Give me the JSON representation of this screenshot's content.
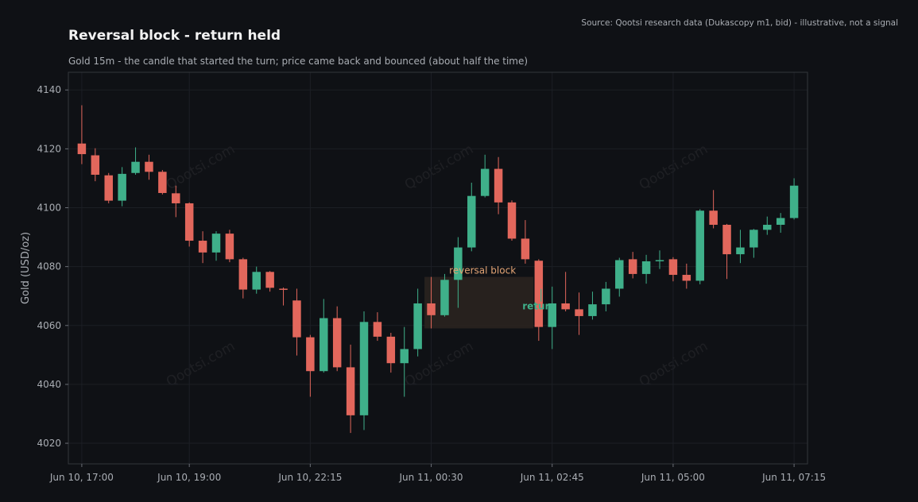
{
  "header": {
    "source": "Source: Qootsi research data (Dukascopy m1, bid) - illustrative, not a signal",
    "title": "Reversal block - return held",
    "subtitle": "Gold 15m - the candle that started the turn; price came back and bounced (about half the time)"
  },
  "watermark": "Qootsi.com",
  "colors": {
    "background": "#0f1115",
    "plot_border": "#33363c",
    "grid": "#1c1f25",
    "up": "#3fb08a",
    "down": "#e2675c",
    "zone_fill": "#2b2420",
    "zone_label": "#e2a374",
    "return_label": "#3fb08a"
  },
  "chart_data": {
    "type": "candlestick",
    "ylabel": "Gold (USD/oz)",
    "ylim": [
      4013,
      4146
    ],
    "yticks": [
      4020,
      4040,
      4060,
      4080,
      4100,
      4120,
      4140
    ],
    "xticks": [
      {
        "label": "Jun 10, 17:00",
        "index": 0
      },
      {
        "label": "Jun 10, 19:00",
        "index": 8
      },
      {
        "label": "Jun 10, 22:15",
        "index": 17
      },
      {
        "label": "Jun 11, 00:30",
        "index": 26
      },
      {
        "label": "Jun 11, 02:45",
        "index": 35
      },
      {
        "label": "Jun 11, 05:00",
        "index": 44
      },
      {
        "label": "Jun 11, 07:15",
        "index": 53
      }
    ],
    "x_range": [
      -1,
      54
    ],
    "grid": true,
    "zone": {
      "label": "reversal block",
      "start_index": 25.5,
      "end_index": 33.6,
      "low": 4059.0,
      "high": 4076.5
    },
    "return_marker": {
      "label": "return",
      "index": 34.2,
      "price": 4066.5
    },
    "candles": [
      {
        "o": 4121.8,
        "h": 4134.8,
        "l": 4114.8,
        "c": 4118.2
      },
      {
        "o": 4117.8,
        "h": 4120.2,
        "l": 4109.0,
        "c": 4111.2
      },
      {
        "o": 4111.0,
        "h": 4111.8,
        "l": 4101.5,
        "c": 4102.4
      },
      {
        "o": 4102.4,
        "h": 4113.8,
        "l": 4100.5,
        "c": 4111.5
      },
      {
        "o": 4111.8,
        "h": 4120.5,
        "l": 4111.2,
        "c": 4115.6
      },
      {
        "o": 4115.6,
        "h": 4118.0,
        "l": 4109.5,
        "c": 4112.2
      },
      {
        "o": 4112.2,
        "h": 4112.8,
        "l": 4104.5,
        "c": 4105.0
      },
      {
        "o": 4104.9,
        "h": 4107.5,
        "l": 4096.8,
        "c": 4101.5
      },
      {
        "o": 4101.5,
        "h": 4101.8,
        "l": 4086.8,
        "c": 4088.8
      },
      {
        "o": 4088.8,
        "h": 4092.0,
        "l": 4081.2,
        "c": 4084.8
      },
      {
        "o": 4084.8,
        "h": 4092.0,
        "l": 4082.0,
        "c": 4091.2
      },
      {
        "o": 4091.2,
        "h": 4092.5,
        "l": 4081.5,
        "c": 4082.5
      },
      {
        "o": 4082.5,
        "h": 4083.0,
        "l": 4069.2,
        "c": 4072.2
      },
      {
        "o": 4072.2,
        "h": 4080.0,
        "l": 4070.8,
        "c": 4078.2
      },
      {
        "o": 4078.2,
        "h": 4078.5,
        "l": 4071.5,
        "c": 4072.8
      },
      {
        "o": 4072.5,
        "h": 4072.9,
        "l": 4066.8,
        "c": 4072.1
      },
      {
        "o": 4068.5,
        "h": 4072.5,
        "l": 4049.8,
        "c": 4056.0
      },
      {
        "o": 4056.0,
        "h": 4056.8,
        "l": 4035.8,
        "c": 4044.5
      },
      {
        "o": 4044.5,
        "h": 4069.0,
        "l": 4044.0,
        "c": 4062.5
      },
      {
        "o": 4062.5,
        "h": 4066.5,
        "l": 4044.5,
        "c": 4045.8
      },
      {
        "o": 4045.8,
        "h": 4053.5,
        "l": 4023.5,
        "c": 4029.5
      },
      {
        "o": 4029.5,
        "h": 4064.8,
        "l": 4024.5,
        "c": 4061.2
      },
      {
        "o": 4061.2,
        "h": 4064.5,
        "l": 4054.8,
        "c": 4056.2
      },
      {
        "o": 4056.2,
        "h": 4057.5,
        "l": 4044.0,
        "c": 4047.2
      },
      {
        "o": 4047.2,
        "h": 4059.5,
        "l": 4035.8,
        "c": 4052.0
      },
      {
        "o": 4052.0,
        "h": 4072.5,
        "l": 4049.5,
        "c": 4067.5
      },
      {
        "o": 4067.5,
        "h": 4076.5,
        "l": 4059.0,
        "c": 4063.5
      },
      {
        "o": 4063.5,
        "h": 4077.5,
        "l": 4063.0,
        "c": 4075.5
      },
      {
        "o": 4075.5,
        "h": 4090.0,
        "l": 4066.0,
        "c": 4086.5
      },
      {
        "o": 4086.5,
        "h": 4108.5,
        "l": 4085.2,
        "c": 4104.0
      },
      {
        "o": 4104.0,
        "h": 4118.0,
        "l": 4103.5,
        "c": 4113.2
      },
      {
        "o": 4113.2,
        "h": 4117.2,
        "l": 4097.8,
        "c": 4101.8
      },
      {
        "o": 4101.8,
        "h": 4102.5,
        "l": 4088.8,
        "c": 4089.5
      },
      {
        "o": 4089.5,
        "h": 4095.8,
        "l": 4081.0,
        "c": 4082.5
      },
      {
        "o": 4082.0,
        "h": 4082.5,
        "l": 4054.8,
        "c": 4059.5
      },
      {
        "o": 4059.5,
        "h": 4073.2,
        "l": 4052.0,
        "c": 4067.5
      },
      {
        "o": 4067.5,
        "h": 4078.2,
        "l": 4064.8,
        "c": 4065.5
      },
      {
        "o": 4065.5,
        "h": 4071.2,
        "l": 4056.8,
        "c": 4063.2
      },
      {
        "o": 4063.2,
        "h": 4071.5,
        "l": 4062.0,
        "c": 4067.2
      },
      {
        "o": 4067.2,
        "h": 4074.8,
        "l": 4064.8,
        "c": 4072.5
      },
      {
        "o": 4072.5,
        "h": 4083.0,
        "l": 4069.8,
        "c": 4082.2
      },
      {
        "o": 4082.5,
        "h": 4085.0,
        "l": 4076.0,
        "c": 4077.5
      },
      {
        "o": 4077.5,
        "h": 4084.0,
        "l": 4074.2,
        "c": 4081.8
      },
      {
        "o": 4081.8,
        "h": 4085.5,
        "l": 4079.2,
        "c": 4082.2
      },
      {
        "o": 4082.5,
        "h": 4083.2,
        "l": 4075.0,
        "c": 4077.2
      },
      {
        "o": 4077.2,
        "h": 4081.0,
        "l": 4072.5,
        "c": 4075.2
      },
      {
        "o": 4075.2,
        "h": 4099.5,
        "l": 4074.0,
        "c": 4099.0
      },
      {
        "o": 4099.0,
        "h": 4106.0,
        "l": 4093.0,
        "c": 4094.2
      },
      {
        "o": 4094.2,
        "h": 4094.5,
        "l": 4075.8,
        "c": 4084.2
      },
      {
        "o": 4084.2,
        "h": 4092.5,
        "l": 4081.2,
        "c": 4086.5
      },
      {
        "o": 4086.5,
        "h": 4092.8,
        "l": 4083.0,
        "c": 4092.5
      },
      {
        "o": 4092.5,
        "h": 4097.0,
        "l": 4090.8,
        "c": 4094.2
      },
      {
        "o": 4094.2,
        "h": 4098.2,
        "l": 4091.5,
        "c": 4096.5
      },
      {
        "o": 4096.5,
        "h": 4110.0,
        "l": 4096.0,
        "c": 4107.5
      }
    ]
  }
}
